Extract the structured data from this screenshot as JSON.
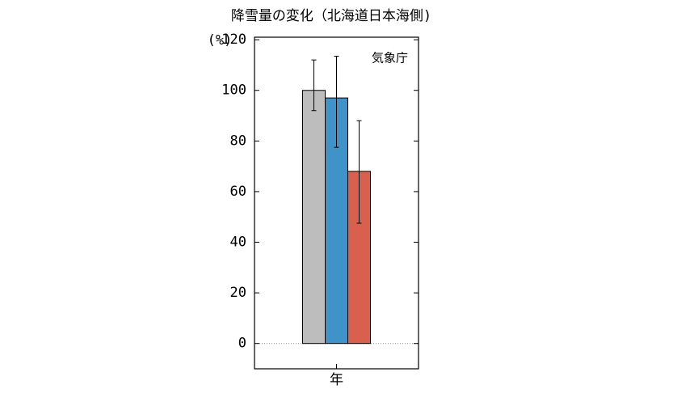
{
  "chart_data": {
    "type": "bar",
    "title": "降雪量の変化（北海道日本海側)",
    "y_label": "(%)",
    "annotation": "気象庁",
    "categories": [
      "年"
    ],
    "series": [
      {
        "color": "#bdbdbd",
        "values": [
          100
        ],
        "error_minus": [
          8
        ],
        "error_plus": [
          12
        ]
      },
      {
        "color": "#3f93c8",
        "values": [
          97
        ],
        "error_minus": [
          19.5
        ],
        "error_plus": [
          16.5
        ]
      },
      {
        "color": "#d9604c",
        "values": [
          68
        ],
        "error_minus": [
          20.5
        ],
        "error_plus": [
          20
        ]
      }
    ],
    "ylim": [
      -10,
      121
    ],
    "yticks": [
      0,
      20,
      40,
      60,
      80,
      100,
      120
    ],
    "zero_line": true
  }
}
